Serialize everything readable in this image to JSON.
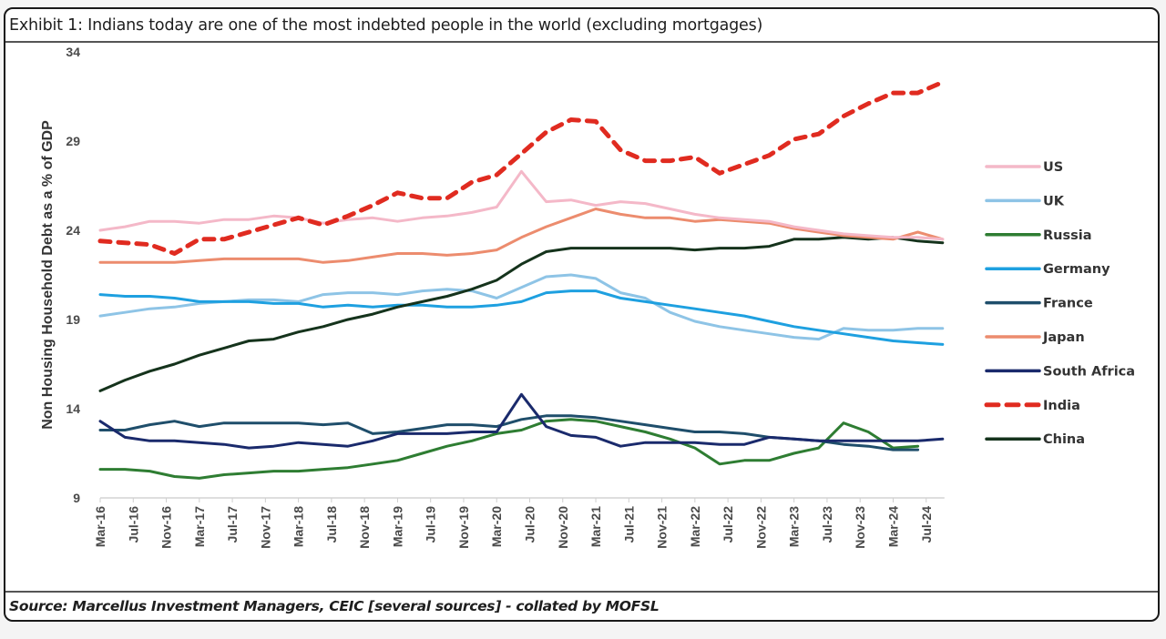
{
  "header": {
    "title": "Exhibit 1: Indians today are one of the most indebted people in the world (excluding mortgages)"
  },
  "footer": {
    "source": "Source: Marcellus Investment Managers, CEIC [several sources] - collated by MOFSL"
  },
  "chart_data": {
    "type": "line",
    "title": "Exhibit 1: Indians today are one of the most indebted people in the world (excluding mortgages)",
    "xlabel": "",
    "ylabel": "Non Housing Household Debt as a % of GDP",
    "ylim": [
      9,
      34
    ],
    "yticks": [
      9,
      14,
      19,
      24,
      29,
      34
    ],
    "grid": false,
    "legend_position": "right",
    "x_tick_labels": [
      "Mar-16",
      "Jul-16",
      "Nov-16",
      "Mar-17",
      "Jul-17",
      "Nov-17",
      "Mar-18",
      "Jul-18",
      "Nov-18",
      "Mar-19",
      "Jul-19",
      "Nov-19",
      "Mar-20",
      "Jul-20",
      "Nov-20",
      "Mar-21",
      "Jul-21",
      "Nov-21",
      "Mar-22",
      "Jul-22",
      "Nov-22",
      "Mar-23",
      "Jul-23",
      "Nov-23",
      "Mar-24",
      "Jul-24"
    ],
    "x": [
      "Mar-16",
      "Jun-16",
      "Sep-16",
      "Dec-16",
      "Mar-17",
      "Jun-17",
      "Sep-17",
      "Dec-17",
      "Mar-18",
      "Jun-18",
      "Sep-18",
      "Dec-18",
      "Mar-19",
      "Jun-19",
      "Sep-19",
      "Dec-19",
      "Mar-20",
      "Jun-20",
      "Sep-20",
      "Dec-20",
      "Mar-21",
      "Jun-21",
      "Sep-21",
      "Dec-21",
      "Mar-22",
      "Jun-22",
      "Sep-22",
      "Dec-22",
      "Mar-23",
      "Jun-23",
      "Sep-23",
      "Dec-23",
      "Mar-24",
      "Jun-24",
      "Sep-24"
    ],
    "series": [
      {
        "name": "US",
        "color": "#f4b8c8",
        "dashed": false,
        "values": [
          24.0,
          24.2,
          24.5,
          24.5,
          24.4,
          24.6,
          24.6,
          24.8,
          24.7,
          24.4,
          24.6,
          24.7,
          24.5,
          24.7,
          24.8,
          25.0,
          25.3,
          27.3,
          25.6,
          25.7,
          25.4,
          25.6,
          25.5,
          25.2,
          24.9,
          24.7,
          24.6,
          24.5,
          24.2,
          24.0,
          23.8,
          23.7,
          23.6,
          23.6,
          23.5
        ]
      },
      {
        "name": "UK",
        "color": "#8ec4e6",
        "dashed": false,
        "values": [
          19.2,
          19.4,
          19.6,
          19.7,
          19.9,
          20.0,
          20.1,
          20.1,
          20.0,
          20.4,
          20.5,
          20.5,
          20.4,
          20.6,
          20.7,
          20.6,
          20.2,
          20.8,
          21.4,
          21.5,
          21.3,
          20.5,
          20.2,
          19.4,
          18.9,
          18.6,
          18.4,
          18.2,
          18.0,
          17.9,
          18.5,
          18.4,
          18.4,
          18.5,
          18.5
        ]
      },
      {
        "name": "Russia",
        "color": "#2e7d32",
        "dashed": false,
        "values": [
          10.6,
          10.6,
          10.5,
          10.2,
          10.1,
          10.3,
          10.4,
          10.5,
          10.5,
          10.6,
          10.7,
          10.9,
          11.1,
          11.5,
          11.9,
          12.2,
          12.6,
          12.8,
          13.3,
          13.4,
          13.3,
          13.0,
          12.7,
          12.3,
          11.8,
          10.9,
          11.1,
          11.1,
          11.5,
          11.8,
          13.2,
          12.7,
          11.8,
          11.9,
          null
        ]
      },
      {
        "name": "Germany",
        "color": "#1ea0e0",
        "dashed": false,
        "values": [
          20.4,
          20.3,
          20.3,
          20.2,
          20.0,
          20.0,
          20.0,
          19.9,
          19.9,
          19.7,
          19.8,
          19.7,
          19.8,
          19.8,
          19.7,
          19.7,
          19.8,
          20.0,
          20.5,
          20.6,
          20.6,
          20.2,
          20.0,
          19.8,
          19.6,
          19.4,
          19.2,
          18.9,
          18.6,
          18.4,
          18.2,
          18.0,
          17.8,
          17.7,
          17.6
        ]
      },
      {
        "name": "France",
        "color": "#1f4e6b",
        "dashed": false,
        "values": [
          12.8,
          12.8,
          13.1,
          13.3,
          13.0,
          13.2,
          13.2,
          13.2,
          13.2,
          13.1,
          13.2,
          12.6,
          12.7,
          12.9,
          13.1,
          13.1,
          13.0,
          13.4,
          13.6,
          13.6,
          13.5,
          13.3,
          13.1,
          12.9,
          12.7,
          12.7,
          12.6,
          12.4,
          12.3,
          12.2,
          12.0,
          11.9,
          11.7,
          11.7,
          null
        ]
      },
      {
        "name": "Japan",
        "color": "#ec8c6e",
        "dashed": false,
        "values": [
          22.2,
          22.2,
          22.2,
          22.2,
          22.3,
          22.4,
          22.4,
          22.4,
          22.4,
          22.2,
          22.3,
          22.5,
          22.7,
          22.7,
          22.6,
          22.7,
          22.9,
          23.6,
          24.2,
          24.7,
          25.2,
          24.9,
          24.7,
          24.7,
          24.5,
          24.6,
          24.5,
          24.4,
          24.1,
          23.9,
          23.7,
          23.6,
          23.5,
          23.9,
          23.5
        ]
      },
      {
        "name": "South Africa",
        "color": "#1a2a6c",
        "dashed": false,
        "values": [
          13.3,
          12.4,
          12.2,
          12.2,
          12.1,
          12.0,
          11.8,
          11.9,
          12.1,
          12.0,
          11.9,
          12.2,
          12.6,
          12.6,
          12.6,
          12.7,
          12.7,
          14.8,
          13.0,
          12.5,
          12.4,
          11.9,
          12.1,
          12.1,
          12.1,
          12.0,
          12.0,
          12.4,
          12.3,
          12.2,
          12.2,
          12.2,
          12.2,
          12.2,
          12.3
        ]
      },
      {
        "name": "India",
        "color": "#e02b20",
        "dashed": true,
        "values": [
          23.4,
          23.3,
          23.2,
          22.7,
          23.5,
          23.5,
          23.9,
          24.3,
          24.7,
          24.3,
          24.8,
          25.4,
          26.1,
          25.8,
          25.8,
          26.7,
          27.1,
          28.3,
          29.5,
          30.2,
          30.1,
          28.5,
          27.9,
          27.9,
          28.1,
          27.2,
          27.7,
          28.2,
          29.1,
          29.4,
          30.4,
          31.1,
          31.7,
          31.7,
          32.3
        ]
      },
      {
        "name": "China",
        "color": "#15331c",
        "dashed": false,
        "values": [
          15.0,
          15.6,
          16.1,
          16.5,
          17.0,
          17.4,
          17.8,
          17.9,
          18.3,
          18.6,
          19.0,
          19.3,
          19.7,
          20.0,
          20.3,
          20.7,
          21.2,
          22.1,
          22.8,
          23.0,
          23.0,
          23.0,
          23.0,
          23.0,
          22.9,
          23.0,
          23.0,
          23.1,
          23.5,
          23.5,
          23.6,
          23.5,
          23.6,
          23.4,
          23.3
        ]
      }
    ]
  }
}
